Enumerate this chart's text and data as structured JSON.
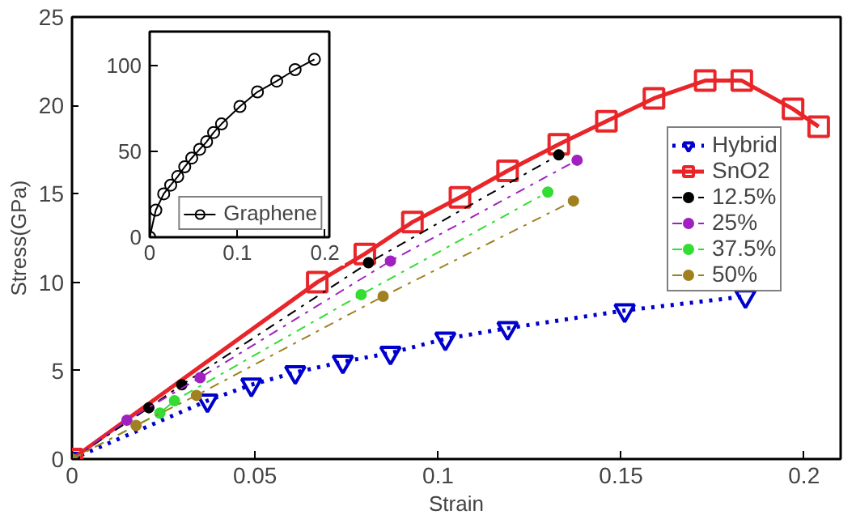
{
  "chart_data": [
    {
      "type": "line",
      "xlabel": "Strain",
      "ylabel": "Stress(GPa)",
      "xlim": [
        0,
        0.21
      ],
      "ylim": [
        0,
        25
      ],
      "xticks": [
        0,
        0.05,
        0.1,
        0.15,
        0.2
      ],
      "yticks": [
        0,
        5,
        10,
        15,
        20,
        25
      ],
      "grid": false,
      "legend": "right",
      "series": [
        {
          "name": "Hybrid",
          "color": "#0000cc",
          "marker": "triangle",
          "line_style": "dotted",
          "x": [
            0,
            0.037,
            0.049,
            0.061,
            0.074,
            0.087,
            0.102,
            0.119,
            0.151,
            0.184
          ],
          "values": [
            0,
            3.3,
            4.2,
            4.9,
            5.5,
            6.0,
            6.8,
            7.4,
            8.4,
            9.2
          ]
        },
        {
          "name": "SnO2",
          "color": "#e8262a",
          "marker": "square",
          "line_style": "solid",
          "x": [
            0,
            0.067,
            0.08,
            0.093,
            0.106,
            0.119,
            0.133,
            0.146,
            0.159,
            0.173,
            0.183,
            0.197,
            0.204
          ],
          "values": [
            0,
            10,
            11.6,
            13.4,
            14.8,
            16.3,
            17.8,
            19.1,
            20.4,
            21.4,
            21.4,
            19.8,
            18.8
          ]
        },
        {
          "name": "12.5%",
          "color": "#000000",
          "marker": "circle",
          "line_style": "dashed",
          "x": [
            0,
            0.021,
            0.03,
            0.081,
            0.133
          ],
          "values": [
            0,
            2.9,
            4.2,
            11.1,
            17.2
          ]
        },
        {
          "name": "25%",
          "color": "#a020c0",
          "marker": "circle",
          "line_style": "dashed",
          "x": [
            0,
            0.015,
            0.035,
            0.087,
            0.138
          ],
          "values": [
            0,
            2.2,
            4.6,
            11.2,
            16.9
          ]
        },
        {
          "name": "37.5%",
          "color": "#33dd33",
          "marker": "circle",
          "line_style": "dashed",
          "x": [
            0,
            0.024,
            0.028,
            0.079,
            0.13
          ],
          "values": [
            0,
            2.6,
            3.3,
            9.3,
            15.1
          ]
        },
        {
          "name": "50%",
          "color": "#a08020",
          "marker": "circle",
          "line_style": "dashed",
          "x": [
            0,
            0.0175,
            0.034,
            0.085,
            0.137
          ],
          "values": [
            0,
            1.9,
            3.6,
            9.2,
            14.6
          ]
        }
      ]
    },
    {
      "type": "line",
      "xlim": [
        0,
        0.205
      ],
      "ylim": [
        0,
        120
      ],
      "xticks": [
        0,
        0.1,
        0.2
      ],
      "yticks": [
        0,
        50,
        100
      ],
      "grid": false,
      "legend": "bottom right",
      "series": [
        {
          "name": "Graphene",
          "color": "#000000",
          "marker": "circle",
          "line_style": "solid",
          "x": [
            0,
            0.007,
            0.016,
            0.024,
            0.032,
            0.04,
            0.048,
            0.057,
            0.065,
            0.073,
            0.082,
            0.103,
            0.123,
            0.145,
            0.166,
            0.188
          ],
          "values": [
            0,
            15.8,
            25.3,
            30.4,
            35.4,
            41.1,
            46.2,
            51.3,
            55.7,
            61.1,
            66.1,
            76.3,
            84.8,
            91.1,
            97.8,
            103.8
          ]
        }
      ]
    }
  ]
}
